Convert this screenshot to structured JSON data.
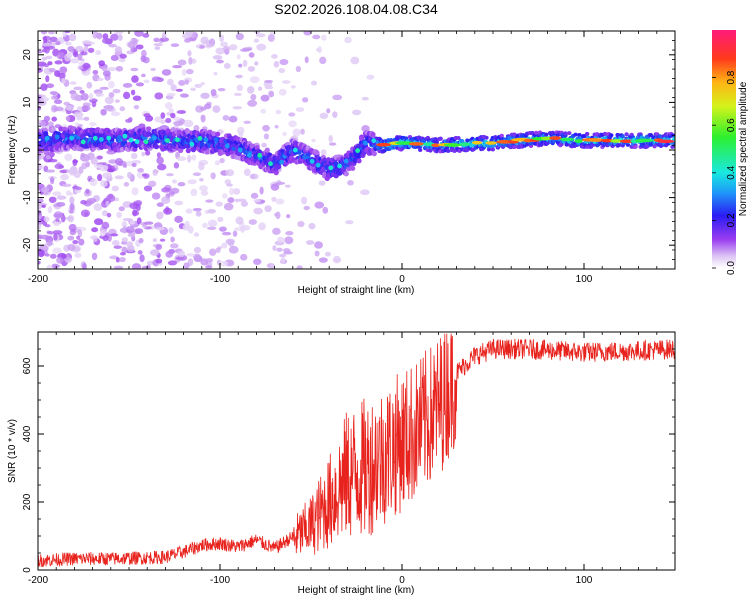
{
  "title": "S202.2026.108.04.08.C34",
  "colors": {
    "snr_line": "#e8221c",
    "axis": "#000000",
    "background": "#ffffff"
  },
  "chart_data": [
    {
      "type": "heatmap",
      "title": "S202.2026.108.04.08.C34",
      "xlabel": "Height of straight line (km)",
      "ylabel": "Frequency (Hz)",
      "xlim": [
        -200,
        150
      ],
      "ylim": [
        -25,
        25
      ],
      "x_ticks": [
        -200,
        -100,
        0,
        100
      ],
      "x_tick_labels": [
        "-200",
        "-100",
        "0",
        "100"
      ],
      "y_ticks": [
        -20,
        -10,
        0,
        10,
        20
      ],
      "y_tick_labels": [
        "-20",
        "-10",
        "0",
        "10",
        "20"
      ],
      "colorbar": {
        "label": "Normalized spectral amplitude",
        "range": [
          0,
          1
        ],
        "ticks": [
          0.0,
          0.2,
          0.4,
          0.6,
          0.8
        ],
        "tick_labels": [
          "0.0",
          "0.2",
          "0.4",
          "0.6",
          "0.8"
        ]
      },
      "ridge": {
        "description_points_x": [
          -200,
          -180,
          -160,
          -140,
          -120,
          -100,
          -90,
          -80,
          -70,
          -60,
          -50,
          -40,
          -30,
          -20,
          -10,
          0,
          20,
          50,
          80,
          100,
          120,
          150
        ],
        "description_points_freq": [
          2,
          2.5,
          2,
          2.5,
          2,
          1.5,
          0.5,
          -1,
          -3,
          0,
          -2,
          -4,
          -3,
          1.5,
          1,
          1.5,
          1,
          1.5,
          2.5,
          2,
          2,
          2
        ]
      }
    },
    {
      "type": "line",
      "xlabel": "Height of straight line (km)",
      "ylabel": "SNR (10 * v/v)",
      "xlim": [
        -200,
        150
      ],
      "ylim": [
        0,
        700
      ],
      "x_ticks": [
        -200,
        -100,
        0,
        100
      ],
      "x_tick_labels": [
        "-200",
        "-100",
        "0",
        "100"
      ],
      "y_ticks": [
        0,
        200,
        400,
        600
      ],
      "y_tick_labels": [
        "0",
        "200",
        "400",
        "600"
      ],
      "series": [
        {
          "name": "SNR",
          "x": [
            -200,
            -180,
            -160,
            -140,
            -130,
            -120,
            -110,
            -100,
            -90,
            -80,
            -70,
            -60,
            -50,
            -40,
            -30,
            -20,
            -10,
            0,
            10,
            20,
            30,
            40,
            50,
            70,
            100,
            130,
            150
          ],
          "y": [
            20,
            25,
            25,
            28,
            30,
            45,
            65,
            70,
            60,
            80,
            55,
            90,
            130,
            200,
            280,
            300,
            340,
            380,
            420,
            480,
            580,
            630,
            650,
            650,
            640,
            645,
            650
          ]
        }
      ]
    }
  ]
}
